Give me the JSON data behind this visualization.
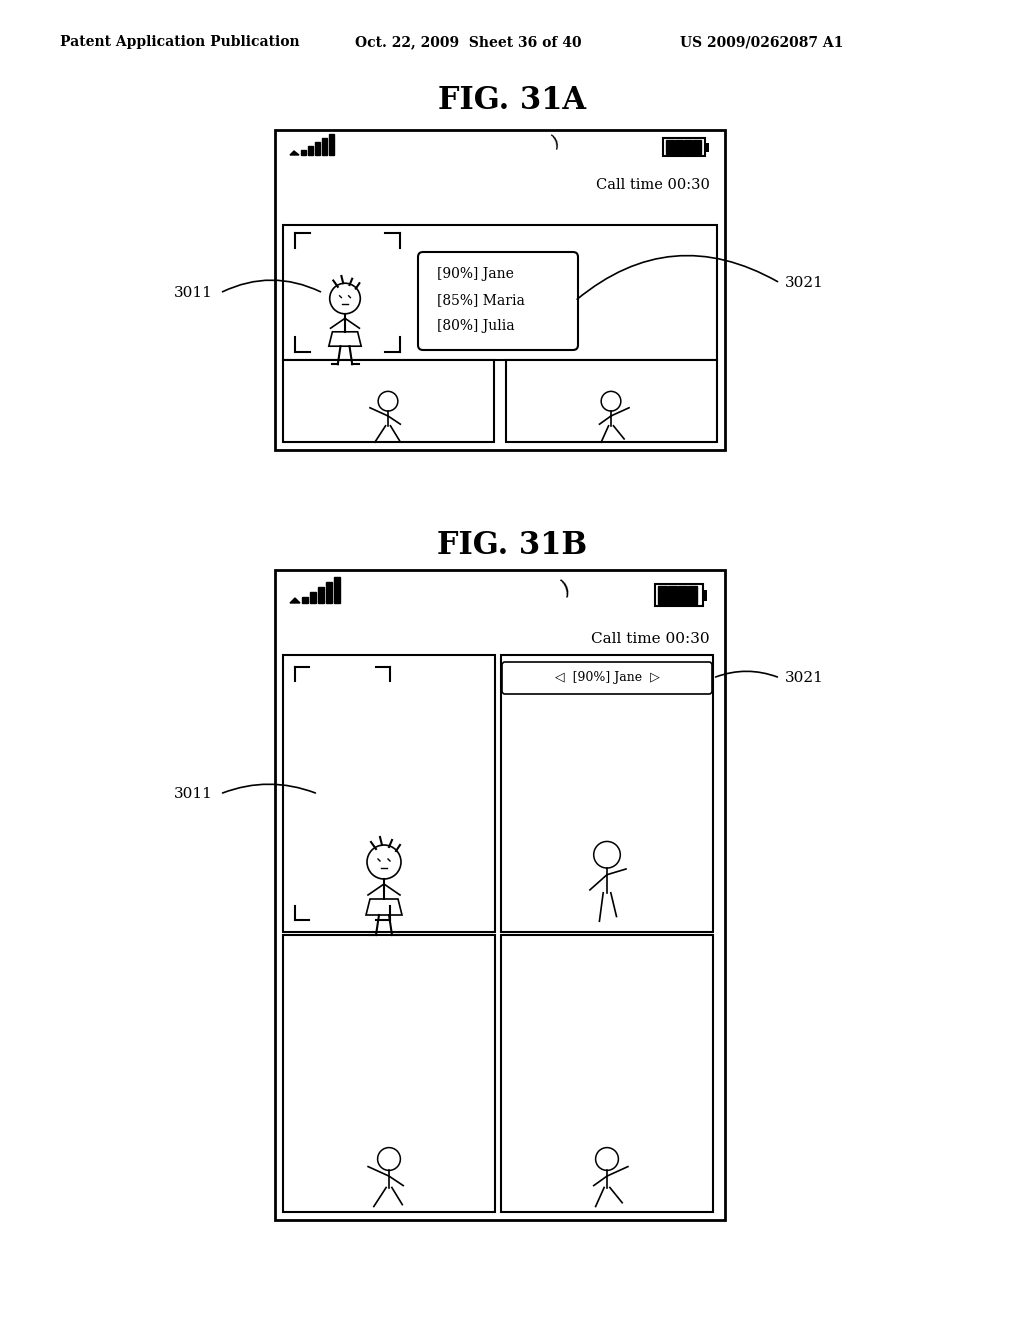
{
  "bg_color": "#ffffff",
  "header_left": "Patent Application Publication",
  "header_mid": "Oct. 22, 2009  Sheet 36 of 40",
  "header_right": "US 2009/0262087 A1",
  "fig_a_title": "FIG. 31A",
  "fig_b_title": "FIG. 31B",
  "label_3011": "3011",
  "label_3021": "3021",
  "call_time": "Call time 00:30",
  "nav_b": "◁  [90%] Jane  ▷"
}
